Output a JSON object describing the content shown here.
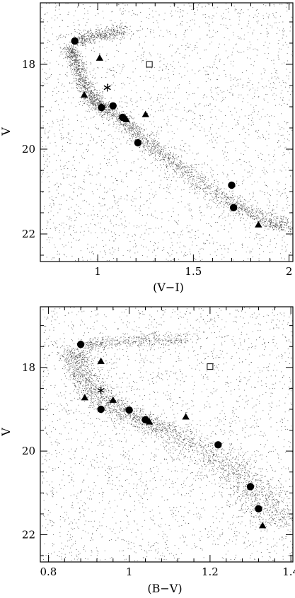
{
  "chart_data": [
    {
      "type": "scatter",
      "title": "",
      "xlabel": "(V−I)",
      "ylabel": "V",
      "xlim": [
        0.7,
        2.02
      ],
      "ylim": [
        22.65,
        16.55
      ],
      "y_inverted": true,
      "xticks": [
        1,
        1.5,
        2
      ],
      "xtick_labels": [
        "1",
        "1.5",
        "2"
      ],
      "yticks": [
        18,
        20,
        22
      ],
      "ytick_labels": [
        "18",
        "20",
        "22"
      ],
      "grid": false,
      "legend": "none",
      "background_stars": {
        "description": "dense field of faint stars following a main-sequence ridge (color/magnitude fiducial)",
        "ridge": [
          [
            0.85,
            17.6
          ],
          [
            0.88,
            17.9
          ],
          [
            0.92,
            18.4
          ],
          [
            0.97,
            18.8
          ],
          [
            1.02,
            19.0
          ],
          [
            1.12,
            19.3
          ],
          [
            1.22,
            19.7
          ],
          [
            1.32,
            20.05
          ],
          [
            1.45,
            20.5
          ],
          [
            1.6,
            21.0
          ],
          [
            1.75,
            21.4
          ],
          [
            1.9,
            21.7
          ],
          [
            2.0,
            21.9
          ]
        ],
        "branch": [
          [
            0.88,
            17.5
          ],
          [
            0.95,
            17.35
          ],
          [
            1.05,
            17.28
          ],
          [
            1.15,
            17.2
          ]
        ]
      },
      "series": [
        {
          "marker": "circle",
          "values": [
            [
              0.88,
              17.45
            ],
            [
              1.02,
              19.02
            ],
            [
              1.08,
              18.98
            ],
            [
              1.13,
              19.25
            ],
            [
              1.21,
              19.85
            ],
            [
              1.7,
              20.85
            ],
            [
              1.71,
              21.38
            ]
          ]
        },
        {
          "marker": "triangle",
          "values": [
            [
              1.01,
              17.85
            ],
            [
              0.93,
              18.72
            ],
            [
              1.15,
              19.3
            ],
            [
              1.25,
              19.18
            ],
            [
              1.84,
              21.78
            ]
          ]
        },
        {
          "marker": "asterisk",
          "values": [
            [
              1.05,
              18.55
            ]
          ]
        },
        {
          "marker": "open-square",
          "values": [
            [
              1.27,
              18.0
            ]
          ]
        }
      ]
    },
    {
      "type": "scatter",
      "title": "",
      "xlabel": "(B−V)",
      "ylabel": "V",
      "xlim": [
        0.78,
        1.405
      ],
      "ylim": [
        22.65,
        16.55
      ],
      "y_inverted": true,
      "xticks": [
        0.8,
        1,
        1.2,
        1.4
      ],
      "xtick_labels": [
        "0.8",
        "1",
        "1.2",
        "1.4"
      ],
      "yticks": [
        18,
        20,
        22
      ],
      "ytick_labels": [
        "18",
        "20",
        "22"
      ],
      "grid": false,
      "legend": "none",
      "background_stars": {
        "description": "dense field of faint stars following a main-sequence ridge (color/magnitude fiducial)",
        "ridge": [
          [
            0.86,
            17.6
          ],
          [
            0.88,
            18.0
          ],
          [
            0.9,
            18.4
          ],
          [
            0.93,
            18.75
          ],
          [
            0.98,
            19.05
          ],
          [
            1.04,
            19.3
          ],
          [
            1.1,
            19.55
          ],
          [
            1.17,
            19.9
          ],
          [
            1.23,
            20.25
          ],
          [
            1.28,
            20.65
          ],
          [
            1.32,
            21.05
          ],
          [
            1.36,
            21.45
          ],
          [
            1.4,
            21.8
          ]
        ],
        "branch": [
          [
            0.88,
            17.5
          ],
          [
            0.95,
            17.4
          ],
          [
            1.05,
            17.35
          ],
          [
            1.15,
            17.3
          ]
        ]
      },
      "series": [
        {
          "marker": "circle",
          "values": [
            [
              0.88,
              17.45
            ],
            [
              0.93,
              19.0
            ],
            [
              1.0,
              19.02
            ],
            [
              1.04,
              19.25
            ],
            [
              1.22,
              19.85
            ],
            [
              1.3,
              20.85
            ],
            [
              1.32,
              21.38
            ]
          ]
        },
        {
          "marker": "triangle",
          "values": [
            [
              0.93,
              17.85
            ],
            [
              0.89,
              18.72
            ],
            [
              0.96,
              18.78
            ],
            [
              1.05,
              19.3
            ],
            [
              1.14,
              19.18
            ],
            [
              1.33,
              21.78
            ]
          ]
        },
        {
          "marker": "asterisk",
          "values": [
            [
              0.93,
              18.55
            ]
          ]
        },
        {
          "marker": "open-square",
          "values": [
            [
              1.2,
              17.98
            ]
          ]
        }
      ]
    }
  ]
}
